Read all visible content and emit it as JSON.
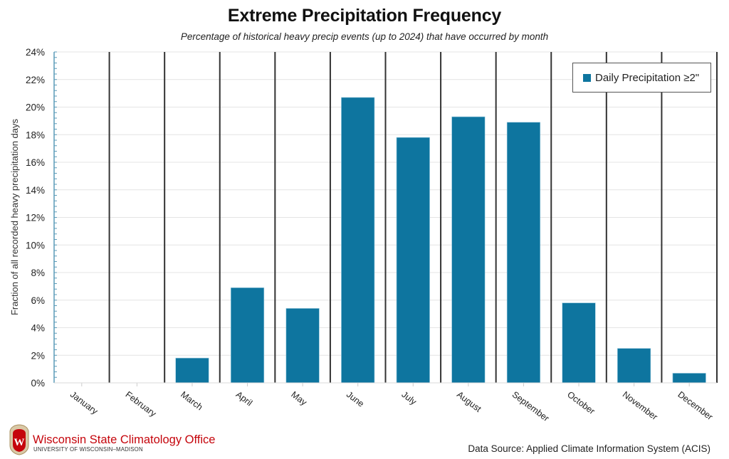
{
  "chart_data": {
    "type": "bar",
    "title": "Extreme Precipitation Frequency",
    "subtitle": "Percentage of historical heavy precip events (up to 2024) that have occurred by month",
    "xlabel": "",
    "ylabel": "Fraction of all recorded heavy precipitation days",
    "ylim": [
      0,
      24
    ],
    "y_unit": "%",
    "yticks": [
      0,
      2,
      4,
      6,
      8,
      10,
      12,
      14,
      16,
      18,
      20,
      22,
      24
    ],
    "ytick_labels": [
      "0%",
      "2%",
      "4%",
      "6%",
      "8%",
      "10%",
      "12%",
      "14%",
      "16%",
      "18%",
      "20%",
      "22%",
      "24%"
    ],
    "grid": true,
    "legend_position": "top-right",
    "categories": [
      "January",
      "February",
      "March",
      "April",
      "May",
      "June",
      "July",
      "August",
      "September",
      "October",
      "November",
      "December"
    ],
    "series": [
      {
        "name": "Daily Precipitation ≥2\"",
        "color": "#0e759f",
        "values": [
          0,
          0,
          1.8,
          6.9,
          5.4,
          20.7,
          17.8,
          19.3,
          18.9,
          5.8,
          2.5,
          0.7
        ]
      }
    ]
  },
  "footer": {
    "org_name": "Wisconsin State Climatology Office",
    "org_sub": "UNIVERSITY OF WISCONSIN–MADISON",
    "logo_letter": "W",
    "source": "Data Source: Applied Climate Information System (ACIS)"
  },
  "colors": {
    "bar": "#0e759f",
    "axis": "#5b9bb8",
    "divider": "#333333",
    "grid": "#e4e4e4",
    "brand_red": "#c5050c"
  }
}
